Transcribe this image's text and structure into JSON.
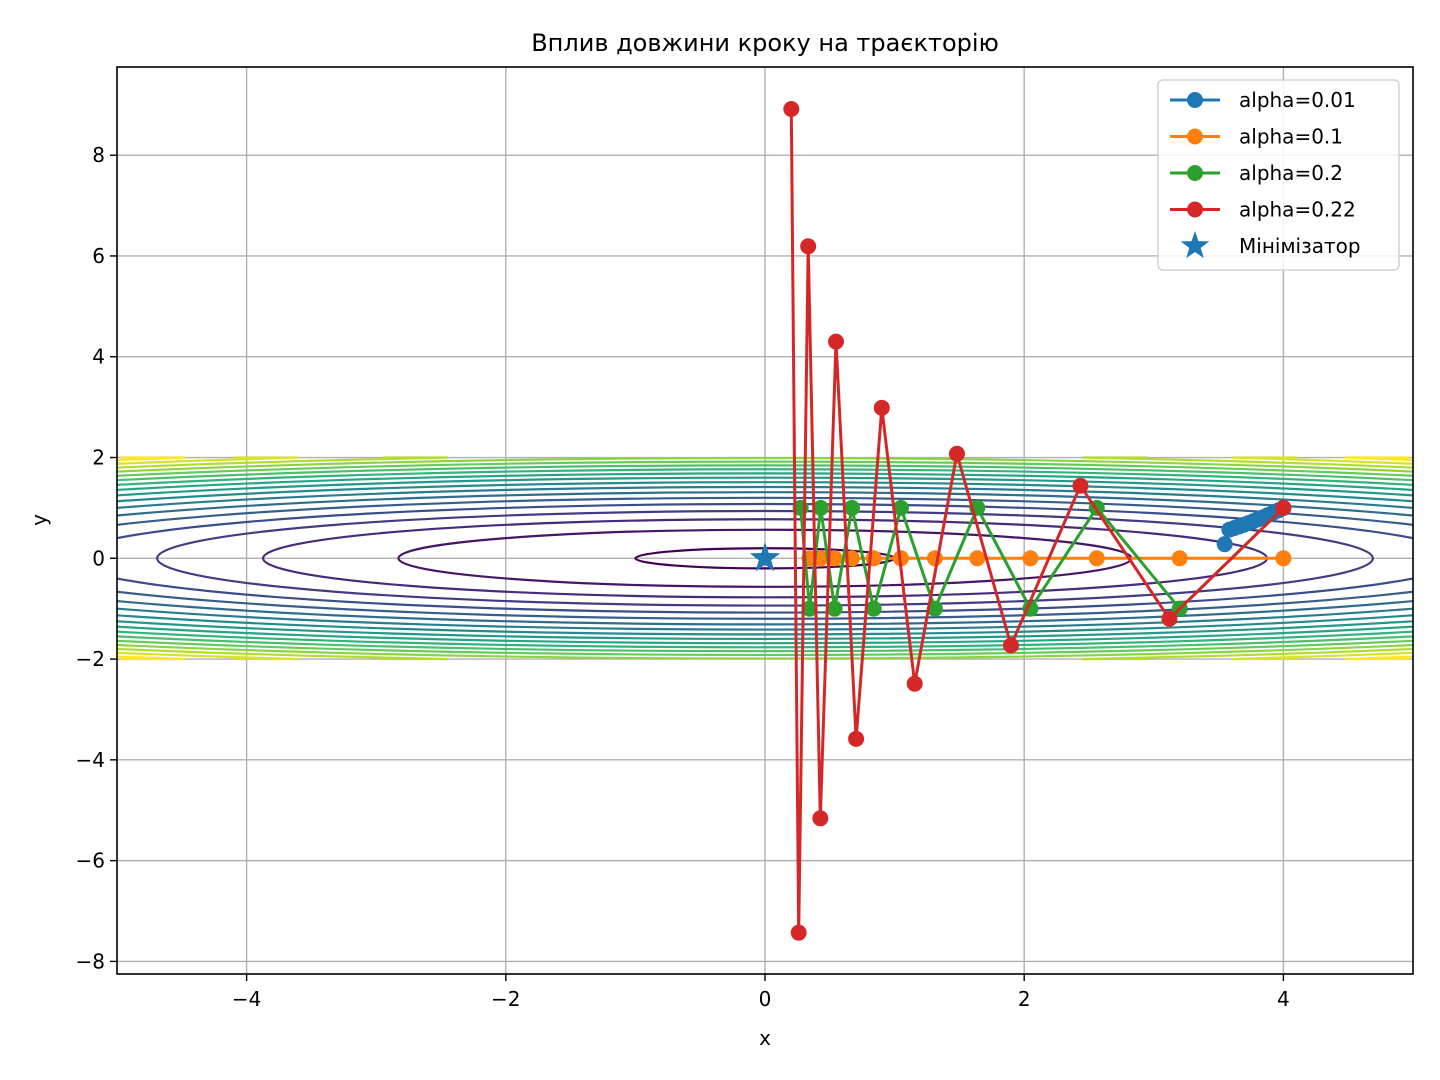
{
  "chart_data": {
    "type": "line",
    "title": "Вплив довжини кроку на траєкторію",
    "xlabel": "x",
    "ylabel": "y",
    "xlim": [
      -5,
      5
    ],
    "ylim": [
      -8.25,
      9.75
    ],
    "xticks": [
      "−4",
      "−2",
      "0",
      "2",
      "4"
    ],
    "xtick_values": [
      -4,
      -2,
      0,
      2,
      4
    ],
    "yticks": [
      "−8",
      "−6",
      "−4",
      "−2",
      "0",
      "2",
      "4",
      "6",
      "8"
    ],
    "ytick_values": [
      -8,
      -6,
      -4,
      -2,
      0,
      2,
      4,
      6,
      8
    ],
    "grid": true,
    "legend_position": "top-right",
    "contour": {
      "function": "f(x, y) = x^2 + 25 y^2",
      "levels": [
        1,
        8,
        15,
        22,
        29,
        36,
        43,
        50,
        57,
        64,
        71,
        78,
        85,
        92,
        99,
        106,
        113,
        120
      ],
      "y_range": [
        -2,
        2
      ],
      "colormap": [
        "#440154",
        "#472d7b",
        "#3b528b",
        "#2c728e",
        "#21918c",
        "#28ae80",
        "#5ec962",
        "#addc30",
        "#fde725"
      ]
    },
    "series": [
      {
        "name": "alpha=0.01",
        "color": "#1f77b4",
        "x": [
          4.0,
          3.96,
          3.92,
          3.88,
          3.843,
          3.804,
          3.767,
          3.729,
          3.692,
          3.655,
          3.619,
          3.583,
          3.547
        ],
        "y": [
          1.0,
          0.95,
          0.9025,
          0.857,
          0.8145,
          0.7738,
          0.7351,
          0.6983,
          0.6634,
          0.6302,
          0.5987,
          0.5688,
          0.28
        ]
      },
      {
        "name": "alpha=0.1",
        "color": "#ff7f0e",
        "x": [
          4.0,
          3.2,
          2.56,
          2.048,
          1.638,
          1.311,
          1.049,
          0.839,
          0.671,
          0.537,
          0.43,
          0.344
        ],
        "y": [
          0.0,
          0.0,
          0.0,
          0.0,
          0.0,
          0.0,
          0.0,
          0.0,
          0.0,
          0.0,
          0.0,
          0.0
        ]
      },
      {
        "name": "alpha=0.2",
        "color": "#2ca02c",
        "x": [
          4.0,
          3.2,
          2.56,
          2.048,
          1.638,
          1.311,
          1.049,
          0.839,
          0.671,
          0.537,
          0.43,
          0.344,
          0.275
        ],
        "y": [
          1.0,
          -1.0,
          1.0,
          -1.0,
          1.0,
          -1.0,
          1.0,
          -1.0,
          1.0,
          -1.0,
          1.0,
          -1.0,
          1.0
        ]
      },
      {
        "name": "alpha=0.22",
        "color": "#d62728",
        "x": [
          4.0,
          3.12,
          2.434,
          1.898,
          1.481,
          1.155,
          0.901,
          0.703,
          0.548,
          0.427,
          0.333,
          0.26,
          0.203
        ],
        "y": [
          1.0,
          -1.2,
          1.44,
          -1.728,
          2.074,
          -2.488,
          2.986,
          -3.583,
          4.3,
          -5.16,
          6.192,
          -7.43,
          8.916
        ]
      }
    ],
    "markers": [
      {
        "name": "Мінімізатор",
        "color": "#1f77b4",
        "shape": "star",
        "x": 0,
        "y": 0
      }
    ]
  }
}
